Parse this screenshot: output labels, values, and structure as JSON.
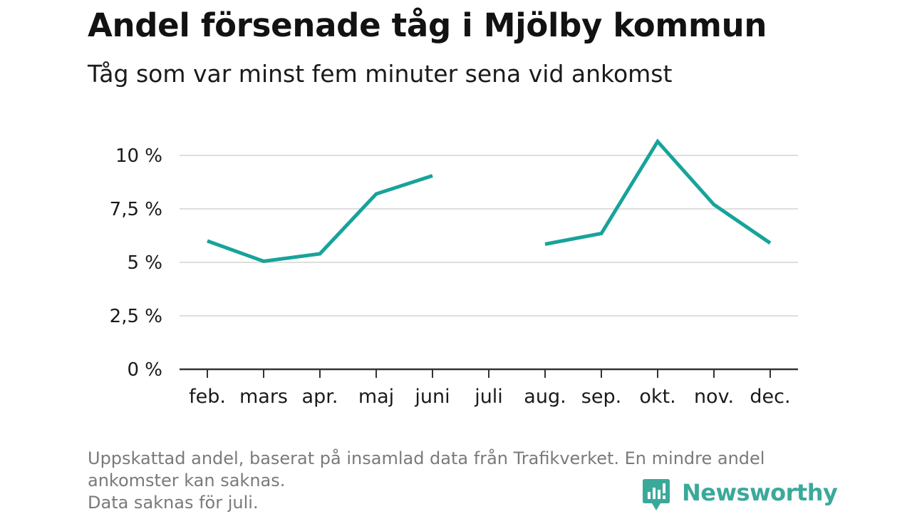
{
  "header": {
    "title": "Andel försenade tåg i Mjölby kommun",
    "subtitle": "Tåg som var minst fem minuter sena vid ankomst"
  },
  "footnote": {
    "line1": "Uppskattad andel, baserat på insamlad data från Trafikverket. En mindre andel",
    "line2": "ankomster kan saknas.",
    "line3": "Data saknas för juli."
  },
  "brand": {
    "name": "Newsworthy",
    "icon": "newsworthy-logo-icon",
    "color": "#3aa99a"
  },
  "chart_data": {
    "type": "line",
    "title": "Andel försenade tåg i Mjölby kommun",
    "subtitle": "Tåg som var minst fem minuter sena vid ankomst",
    "xlabel": "",
    "ylabel": "",
    "categories": [
      "feb.",
      "mars",
      "apr.",
      "maj",
      "juni",
      "juli",
      "aug.",
      "sep.",
      "okt.",
      "nov.",
      "dec."
    ],
    "series": [
      {
        "values": [
          6.0,
          5.05,
          5.4,
          8.2,
          9.05,
          null,
          5.85,
          6.35,
          10.65,
          7.7,
          5.9
        ],
        "color": "#17a39a"
      }
    ],
    "ylim": [
      0,
      10
    ],
    "yticks": [
      0,
      2.5,
      5,
      7.5,
      10
    ],
    "ytick_labels": [
      "0 %",
      "2,5 %",
      "5 %",
      "7,5 %",
      "10 %"
    ],
    "grid": true,
    "legend": "none"
  }
}
